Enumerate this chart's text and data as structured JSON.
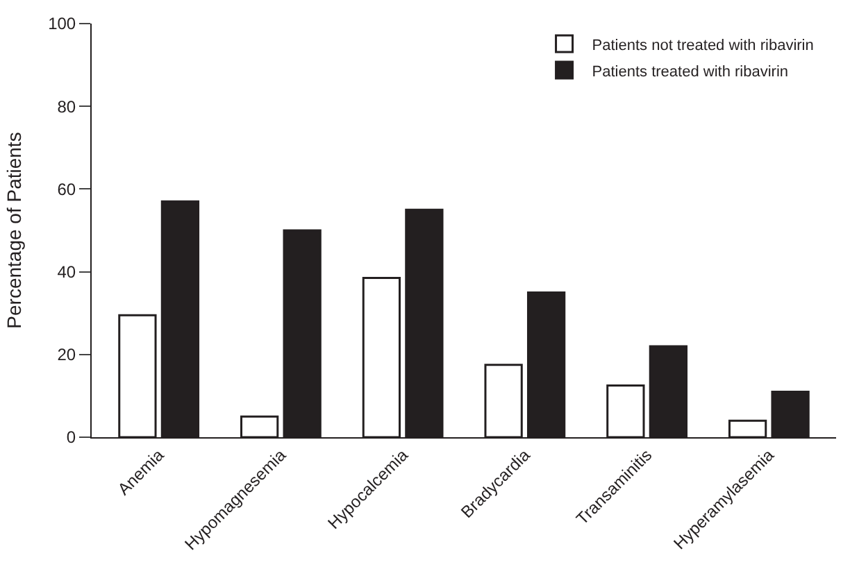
{
  "chart_data": {
    "type": "bar",
    "ylabel": "Percentage of Patients",
    "categories": [
      "Anemia",
      "Hypomagnesemia",
      "Hypocalcemia",
      "Bradycardia",
      "Transaminitis",
      "Hyperamylasemia"
    ],
    "series": [
      {
        "name": "Patients not treated with ribavirin",
        "color": "#ffffff",
        "values": [
          29.5,
          5,
          38.5,
          17.5,
          12.5,
          4
        ]
      },
      {
        "name": "Patients treated with ribavirin",
        "color": "#231f20",
        "values": [
          57,
          50,
          55,
          35,
          22,
          11
        ]
      }
    ],
    "ylim": [
      0,
      100
    ],
    "yticks": [
      0,
      20,
      40,
      60,
      80,
      100
    ],
    "legend": "top right"
  }
}
